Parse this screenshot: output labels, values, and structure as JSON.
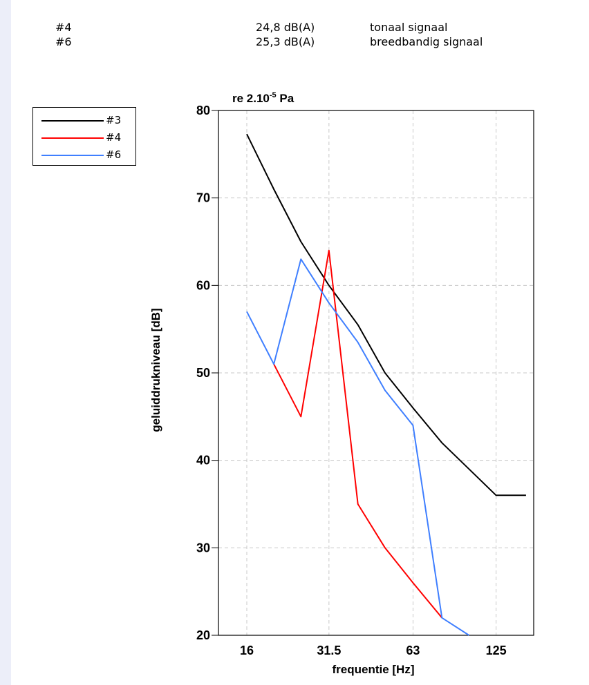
{
  "info": [
    {
      "id": "#4",
      "level": "24,8 dB(A)",
      "desc": "tonaal signaal"
    },
    {
      "id": "#6",
      "level": "25,3 dB(A)",
      "desc": "breedbandig signaal"
    }
  ],
  "legend": [
    {
      "label": "#3",
      "color": "#000000"
    },
    {
      "label": "#4",
      "color": "#ff0000"
    },
    {
      "label": "#6",
      "color": "#3f7fff"
    }
  ],
  "chart_data": {
    "type": "line",
    "title": "re 2.10-5 Pa",
    "title_main": "re 2.10",
    "title_sup": "-5",
    "title_end": " Pa",
    "xlabel": "frequentie [Hz]",
    "ylabel": "geluiddrukniveau [dB]",
    "x_scale": "log (third-octave bands)",
    "x_ticks": [
      "16",
      "31.5",
      "63",
      "125"
    ],
    "ylim": [
      20,
      80
    ],
    "y_ticks": [
      20,
      30,
      40,
      50,
      60,
      70,
      80
    ],
    "grid": true,
    "legend_position": "top-left",
    "series": [
      {
        "name": "#3",
        "color": "#000000",
        "x": [
          16,
          20,
          25,
          31.5,
          40,
          50,
          63,
          80,
          100,
          125,
          160
        ],
        "y": [
          77.3,
          71,
          65,
          60,
          55.5,
          50,
          46,
          42,
          39,
          36,
          36
        ]
      },
      {
        "name": "#4",
        "color": "#ff0000",
        "x": [
          20,
          25,
          31.5,
          40,
          50,
          63,
          80
        ],
        "y": [
          51,
          45,
          64,
          35,
          30,
          26,
          22
        ]
      },
      {
        "name": "#6",
        "color": "#3f7fff",
        "x": [
          16,
          20,
          25,
          31.5,
          40,
          50,
          63,
          80,
          100
        ],
        "y": [
          57,
          51,
          63,
          58,
          53.5,
          48,
          44,
          22,
          20
        ]
      }
    ]
  }
}
